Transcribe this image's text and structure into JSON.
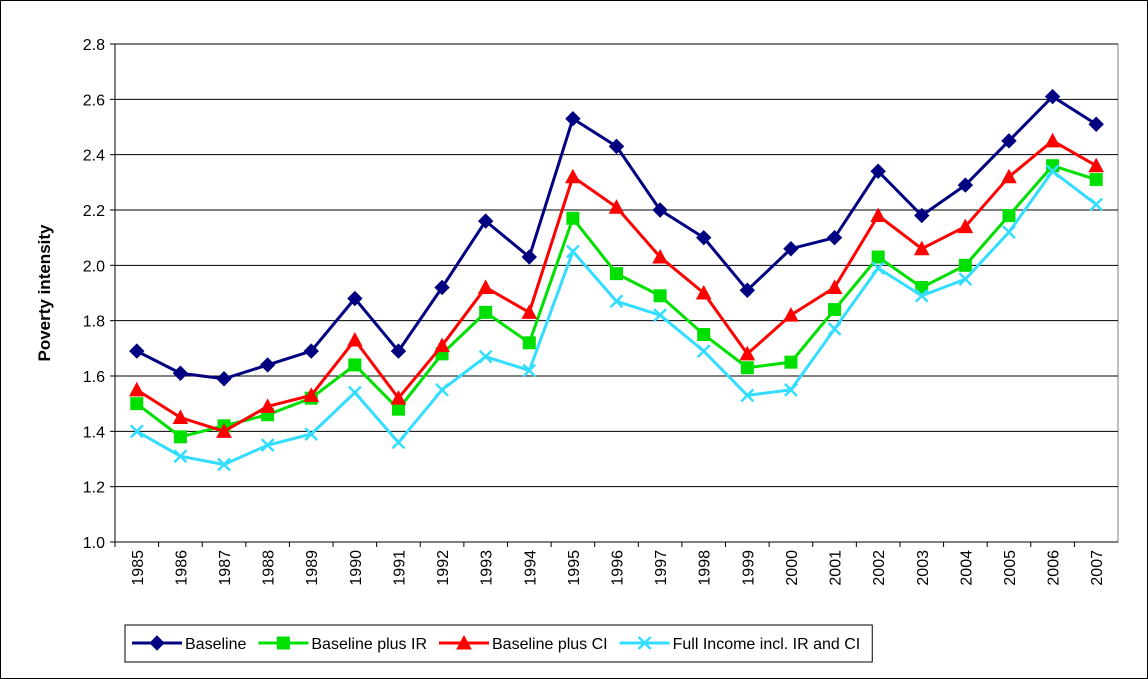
{
  "chart_data": {
    "type": "line",
    "y_label": "Poverty intensity",
    "categories": [
      "1985",
      "1986",
      "1987",
      "1988",
      "1989",
      "1990",
      "1991",
      "1992",
      "1993",
      "1994",
      "1995",
      "1996",
      "1997",
      "1998",
      "1999",
      "2000",
      "2001",
      "2002",
      "2003",
      "2004",
      "2005",
      "2006",
      "2007"
    ],
    "series": [
      {
        "name": "Baseline",
        "color": "#000080",
        "marker": "diamond",
        "values": [
          1.69,
          1.61,
          1.59,
          1.64,
          1.69,
          1.88,
          1.69,
          1.92,
          2.16,
          2.03,
          2.53,
          2.43,
          2.2,
          2.1,
          1.91,
          2.06,
          2.1,
          2.34,
          2.18,
          2.29,
          2.45,
          2.61,
          2.51
        ]
      },
      {
        "name": "Baseline plus IR",
        "color": "#00e000",
        "marker": "square",
        "values": [
          1.5,
          1.38,
          1.42,
          1.46,
          1.52,
          1.64,
          1.48,
          1.68,
          1.83,
          1.72,
          2.17,
          1.97,
          1.89,
          1.75,
          1.63,
          1.65,
          1.84,
          2.03,
          1.92,
          2.0,
          2.18,
          2.36,
          2.31
        ]
      },
      {
        "name": "Baseline plus CI",
        "color": "#ff0000",
        "marker": "triangle",
        "values": [
          1.55,
          1.45,
          1.4,
          1.49,
          1.53,
          1.73,
          1.52,
          1.71,
          1.92,
          1.83,
          2.32,
          2.21,
          2.03,
          1.9,
          1.68,
          1.82,
          1.92,
          2.18,
          2.06,
          2.14,
          2.32,
          2.45,
          2.36
        ]
      },
      {
        "name": "Full Income incl. IR and CI",
        "color": "#33ddff",
        "marker": "x",
        "values": [
          1.4,
          1.31,
          1.28,
          1.35,
          1.39,
          1.54,
          1.36,
          1.55,
          1.67,
          1.62,
          2.05,
          1.87,
          1.82,
          1.69,
          1.53,
          1.55,
          1.77,
          1.99,
          1.89,
          1.95,
          2.12,
          2.34,
          2.22
        ]
      }
    ],
    "ylim": [
      1.0,
      2.8
    ],
    "yticks": [
      {
        "value": 1.0,
        "label": "1.0"
      },
      1.2,
      1.4,
      1.6,
      1.8,
      {
        "value": 2.0,
        "label": "2.0"
      },
      2.2,
      2.4,
      2.6,
      2.8
    ],
    "grid": true,
    "legend": "bottom"
  }
}
